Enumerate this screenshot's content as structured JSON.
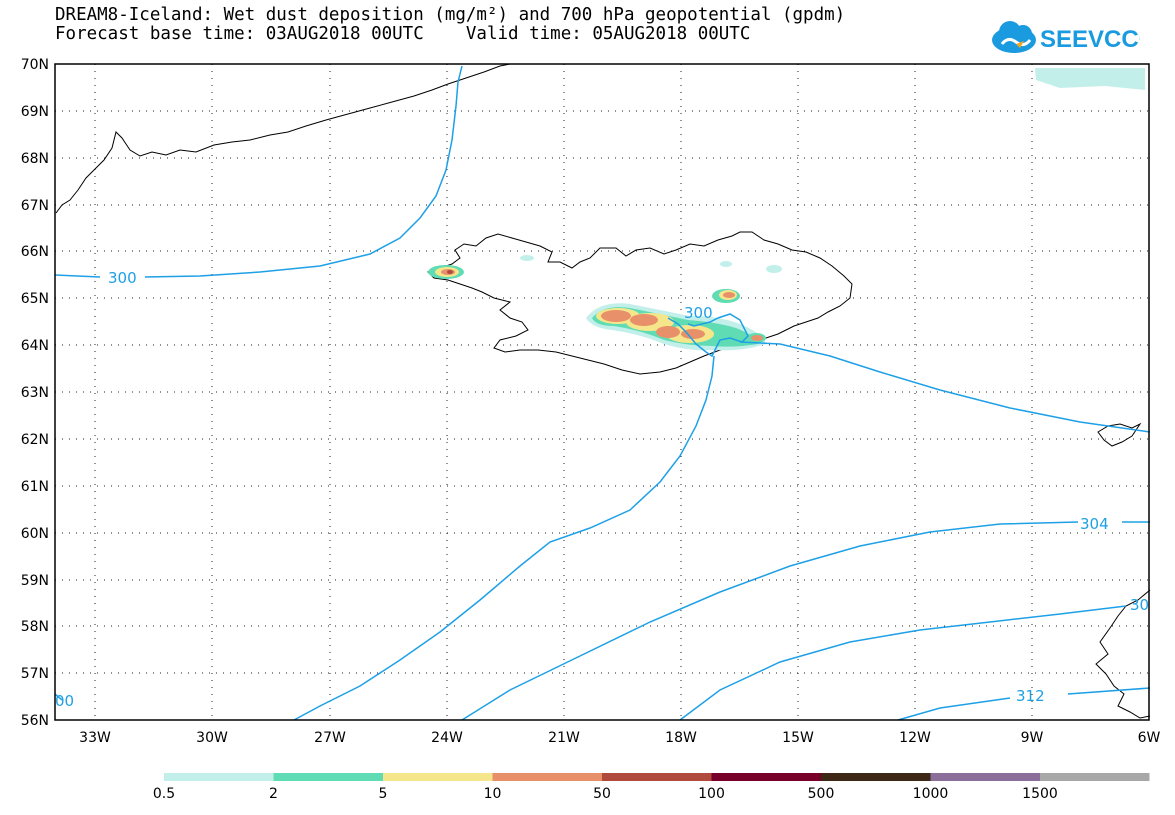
{
  "title": {
    "line1": "DREAM8-Iceland: Wet dust deposition (mg/m²) and 700 hPa geopotential (gpdm)",
    "line2": "Forecast base time: 03AUG2018 00UTC    Valid time: 05AUG2018 00UTC"
  },
  "logo": {
    "text": "SEEVCCC",
    "icon": "cloud-logo-icon",
    "color": "#1a9be0"
  },
  "map": {
    "lat_labels": [
      "70N",
      "69N",
      "68N",
      "67N",
      "66N",
      "65N",
      "64N",
      "63N",
      "62N",
      "61N",
      "60N",
      "59N",
      "58N",
      "57N",
      "56N"
    ],
    "lon_labels": [
      "33W",
      "30W",
      "27W",
      "24W",
      "21W",
      "18W",
      "15W",
      "12W",
      "9W",
      "6W"
    ],
    "isolines": [
      {
        "label": "300",
        "color": "#1ea0e6"
      },
      {
        "label": "300",
        "color": "#1ea0e6"
      },
      {
        "label": "304",
        "color": "#1ea0e6"
      },
      {
        "label": "30",
        "color": "#1ea0e6"
      },
      {
        "label": "312",
        "color": "#1ea0e6"
      },
      {
        "label": "00",
        "color": "#1ea0e6"
      }
    ]
  },
  "legend": {
    "colors": [
      "#c3efeb",
      "#5fdcb4",
      "#f5e68c",
      "#e8906a",
      "#b04a3c",
      "#780028",
      "#3c2814",
      "#8c6e9b",
      "#a8a8a8"
    ],
    "labels": [
      "0.5",
      "2",
      "5",
      "10",
      "50",
      "100",
      "500",
      "1000",
      "1500"
    ]
  }
}
